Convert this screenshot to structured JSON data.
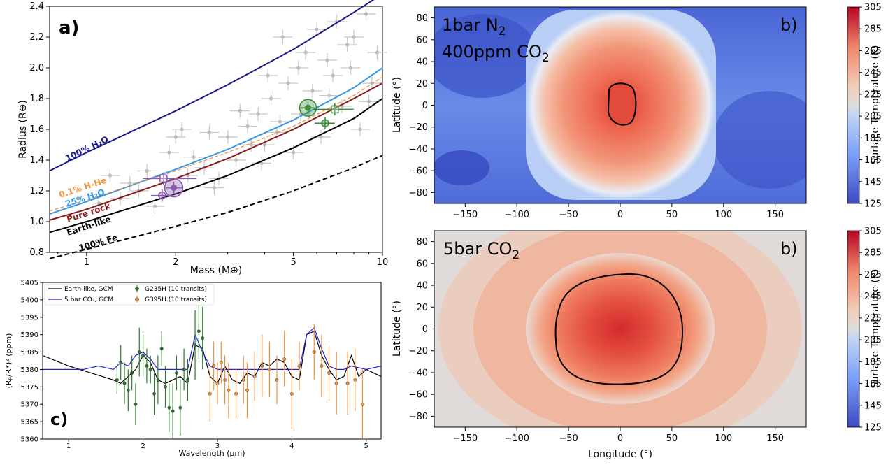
{
  "colors": {
    "h2o100": "#1a1a8c",
    "h2o25": "#3399e6",
    "hhe": "#f0913c",
    "rock": "#8b1a1a",
    "earth": "#000000",
    "fe": "#000000",
    "gcm_earth": "#000000",
    "gcm_co2": "#2222dd",
    "g235": "#2d7a2d",
    "g395": "#f0913c",
    "planet_purple": "#8a5bb0",
    "planet_green": "#3a8a3a",
    "bg_points": "#c8c8c8"
  },
  "chart_data": [
    {
      "type": "scatter",
      "panel_label": "a)",
      "xlabel": "Mass (M⊕)",
      "ylabel": "Radius (R⊕)",
      "xscale": "log",
      "xlim": [
        0.75,
        10
      ],
      "ylim": [
        0.8,
        2.4
      ],
      "xticks": [
        {
          "v": 1,
          "t": "1"
        },
        {
          "v": 2,
          "t": "2"
        },
        {
          "v": 5,
          "t": "5"
        },
        {
          "v": 10,
          "t": "10"
        }
      ],
      "yticks": [
        0.8,
        1.0,
        1.2,
        1.4,
        1.6,
        1.8,
        2.0,
        2.2,
        2.4
      ],
      "curves": [
        {
          "name": "100% H₂O",
          "color": "h2o100",
          "dash": false,
          "x": [
            0.75,
            1,
            2,
            3,
            5,
            8,
            10
          ],
          "y": [
            1.33,
            1.45,
            1.72,
            1.89,
            2.12,
            2.36,
            2.48
          ]
        },
        {
          "name": "25% H₂O",
          "color": "h2o25",
          "dash": false,
          "x": [
            0.75,
            1,
            2,
            3,
            5,
            8,
            10
          ],
          "y": [
            1.05,
            1.13,
            1.34,
            1.47,
            1.66,
            1.87,
            2.0
          ]
        },
        {
          "name": "0.1% H-He",
          "color": "hhe",
          "dash": true,
          "x": [
            0.75,
            1,
            2,
            3,
            5,
            8,
            10
          ],
          "y": [
            1.07,
            1.14,
            1.33,
            1.45,
            1.62,
            1.82,
            1.94
          ]
        },
        {
          "name": "Pure rock",
          "color": "rock",
          "dash": false,
          "x": [
            0.75,
            1,
            2,
            3,
            5,
            8,
            10
          ],
          "y": [
            1.01,
            1.08,
            1.28,
            1.41,
            1.6,
            1.8,
            1.9
          ]
        },
        {
          "name": "Earth-like",
          "color": "earth",
          "dash": false,
          "x": [
            0.75,
            1,
            2,
            3,
            5,
            8,
            10
          ],
          "y": [
            0.93,
            1.0,
            1.18,
            1.3,
            1.48,
            1.67,
            1.8
          ]
        },
        {
          "name": "100% Fe",
          "color": "fe",
          "dash": true,
          "x": [
            0.75,
            1,
            2,
            3,
            5,
            8,
            10
          ],
          "y": [
            0.76,
            0.82,
            0.97,
            1.06,
            1.2,
            1.35,
            1.43
          ]
        }
      ],
      "highlight_points": [
        {
          "x": 1.82,
          "y": 1.28,
          "color": "planet_purple",
          "shape": "square",
          "size": 5,
          "xerr": [
            1.55,
            2.35
          ],
          "yerr": [
            1.24,
            1.32
          ]
        },
        {
          "x": 1.8,
          "y": 1.17,
          "color": "planet_purple",
          "shape": "circle",
          "size": 5,
          "xerr": [
            1.65,
            1.95
          ],
          "yerr": [
            1.13,
            1.21
          ]
        },
        {
          "x": 1.97,
          "y": 1.22,
          "color": "planet_purple",
          "shape": "circle",
          "size": 13,
          "xerr": [
            1.85,
            2.1
          ],
          "yerr": [
            1.18,
            1.26
          ]
        },
        {
          "x": 5.6,
          "y": 1.74,
          "color": "planet_green",
          "shape": "circle",
          "size": 12,
          "xerr": [
            5.3,
            5.9
          ],
          "yerr": [
            1.7,
            1.78
          ]
        },
        {
          "x": 6.9,
          "y": 1.73,
          "color": "planet_green",
          "shape": "square",
          "size": 5,
          "xerr": [
            5.8,
            8.0
          ],
          "yerr": [
            1.69,
            1.77
          ]
        },
        {
          "x": 6.4,
          "y": 1.64,
          "color": "planet_green",
          "shape": "circle",
          "size": 5,
          "xerr": [
            5.9,
            6.9
          ],
          "yerr": [
            1.6,
            1.68
          ]
        }
      ],
      "background_points": [
        [
          1.1,
          1.12
        ],
        [
          1.3,
          1.15
        ],
        [
          1.5,
          1.2
        ],
        [
          1.6,
          1.33
        ],
        [
          1.7,
          1.1
        ],
        [
          2.2,
          1.3
        ],
        [
          2.5,
          1.35
        ],
        [
          2.8,
          1.28
        ],
        [
          3.0,
          1.55
        ],
        [
          3.2,
          1.4
        ],
        [
          3.5,
          1.62
        ],
        [
          3.8,
          1.7
        ],
        [
          4.0,
          1.5
        ],
        [
          4.2,
          1.8
        ],
        [
          4.5,
          1.65
        ],
        [
          4.8,
          1.9
        ],
        [
          5.0,
          1.45
        ],
        [
          5.2,
          2.0
        ],
        [
          5.5,
          2.1
        ],
        [
          5.8,
          1.85
        ],
        [
          6.0,
          2.25
        ],
        [
          6.2,
          1.55
        ],
        [
          6.5,
          2.05
        ],
        [
          6.8,
          1.95
        ],
        [
          7.0,
          2.3
        ],
        [
          7.3,
          1.75
        ],
        [
          7.6,
          2.15
        ],
        [
          8.0,
          2.2
        ],
        [
          8.4,
          1.6
        ],
        [
          8.8,
          2.35
        ],
        [
          9.2,
          1.9
        ],
        [
          9.6,
          2.1
        ],
        [
          2.0,
          1.55
        ],
        [
          2.3,
          1.42
        ],
        [
          2.6,
          1.58
        ],
        [
          3.3,
          1.72
        ],
        [
          3.6,
          1.5
        ],
        [
          4.1,
          1.95
        ],
        [
          4.6,
          2.2
        ],
        [
          5.3,
          1.7
        ],
        [
          1.4,
          1.25
        ],
        [
          1.9,
          1.45
        ],
        [
          2.7,
          1.22
        ],
        [
          3.9,
          1.38
        ],
        [
          7.8,
          2.0
        ],
        [
          9.0,
          1.78
        ],
        [
          6.6,
          1.82
        ],
        [
          4.4,
          1.58
        ],
        [
          2.1,
          1.6
        ],
        [
          1.2,
          1.3
        ]
      ]
    },
    {
      "type": "line",
      "panel_label": "c)",
      "xlabel": "Wavelength (μm)",
      "ylabel": "(Rₚ/R*)² (ppm)",
      "xlim": [
        0.65,
        5.2
      ],
      "ylim": [
        5360,
        5405
      ],
      "xticks": [
        1,
        2,
        3,
        4,
        5
      ],
      "yticks": [
        5360,
        5365,
        5370,
        5375,
        5380,
        5385,
        5390,
        5395,
        5400,
        5405
      ],
      "legend": [
        "Earth-like, GCM",
        "5 bar CO₂, GCM",
        "G235H (10 transits)",
        "G395H (10 transits)"
      ],
      "series": [
        {
          "name": "Earth-like, GCM",
          "color": "gcm_earth",
          "x": [
            0.65,
            1.0,
            1.3,
            1.6,
            1.7,
            1.8,
            1.9,
            2.0,
            2.1,
            2.2,
            2.3,
            2.4,
            2.5,
            2.6,
            2.7,
            2.8,
            2.9,
            3.0,
            3.1,
            3.2,
            3.3,
            3.4,
            3.5,
            3.6,
            3.7,
            3.8,
            3.9,
            4.0,
            4.1,
            4.2,
            4.3,
            4.4,
            4.5,
            4.6,
            4.7,
            4.8,
            4.9,
            5.0,
            5.2
          ],
          "y": [
            5384,
            5381,
            5379,
            5377,
            5376,
            5378,
            5380,
            5384,
            5382,
            5377,
            5376,
            5377,
            5378,
            5376,
            5387,
            5386,
            5378,
            5376,
            5381,
            5377,
            5376,
            5379,
            5378,
            5382,
            5381,
            5383,
            5382,
            5378,
            5377,
            5390,
            5391,
            5384,
            5380,
            5377,
            5378,
            5384,
            5378,
            5380,
            5378
          ]
        },
        {
          "name": "5 bar CO₂, GCM",
          "color": "gcm_co2",
          "x": [
            0.65,
            1.0,
            1.2,
            1.4,
            1.6,
            1.7,
            1.8,
            1.9,
            2.0,
            2.1,
            2.2,
            2.4,
            2.6,
            2.65,
            2.7,
            2.8,
            2.9,
            3.0,
            3.2,
            3.5,
            3.8,
            4.0,
            4.1,
            4.2,
            4.3,
            4.4,
            4.5,
            4.6,
            4.7,
            4.8,
            5.0,
            5.2
          ],
          "y": [
            5380,
            5380,
            5380,
            5381,
            5380,
            5382,
            5381,
            5384,
            5385,
            5383,
            5380,
            5380,
            5380,
            5385,
            5390,
            5385,
            5381,
            5380,
            5380,
            5380,
            5380,
            5380,
            5380,
            5390,
            5392,
            5386,
            5381,
            5380,
            5380,
            5381,
            5380,
            5381
          ]
        },
        {
          "name": "G235H (10 transits)",
          "color": "g235",
          "points": [
            [
              1.65,
              5377,
              4
            ],
            [
              1.7,
              5382,
              5
            ],
            [
              1.75,
              5376,
              6
            ],
            [
              1.8,
              5374,
              6
            ],
            [
              1.85,
              5379,
              5
            ],
            [
              1.9,
              5370,
              6
            ],
            [
              1.95,
              5385,
              7
            ],
            [
              2.0,
              5384,
              6
            ],
            [
              2.05,
              5381,
              5
            ],
            [
              2.1,
              5380,
              4
            ],
            [
              2.15,
              5373,
              6
            ],
            [
              2.2,
              5377,
              7
            ],
            [
              2.25,
              5386,
              5
            ],
            [
              2.3,
              5375,
              6
            ],
            [
              2.35,
              5369,
              7
            ],
            [
              2.4,
              5368,
              8
            ],
            [
              2.45,
              5379,
              5
            ],
            [
              2.5,
              5369,
              8
            ],
            [
              2.55,
              5380,
              6
            ],
            [
              2.6,
              5377,
              6
            ],
            [
              2.7,
              5387,
              10
            ],
            [
              2.75,
              5391,
              8
            ],
            [
              2.8,
              5389,
              9
            ]
          ]
        },
        {
          "name": "G395H (10 transits)",
          "color": "g395",
          "points": [
            [
              2.9,
              5373,
              8
            ],
            [
              2.95,
              5381,
              7
            ],
            [
              3.0,
              5376,
              6
            ],
            [
              3.05,
              5382,
              6
            ],
            [
              3.1,
              5377,
              7
            ],
            [
              3.15,
              5374,
              8
            ],
            [
              3.25,
              5373,
              7
            ],
            [
              3.35,
              5377,
              7
            ],
            [
              3.4,
              5374,
              8
            ],
            [
              3.5,
              5378,
              7
            ],
            [
              3.6,
              5381,
              9
            ],
            [
              3.7,
              5380,
              8
            ],
            [
              3.8,
              5377,
              7
            ],
            [
              3.9,
              5383,
              8
            ],
            [
              4.0,
              5373,
              10
            ],
            [
              4.1,
              5381,
              7
            ],
            [
              4.3,
              5385,
              8
            ],
            [
              4.4,
              5381,
              9
            ],
            [
              4.5,
              5379,
              8
            ],
            [
              4.6,
              5376,
              9
            ],
            [
              4.75,
              5376,
              9
            ],
            [
              4.85,
              5377,
              9
            ],
            [
              4.95,
              5370,
              10
            ]
          ]
        }
      ]
    },
    {
      "type": "heatmap",
      "panel_label": "b)",
      "title_line1": "1bar N",
      "title_line1_sub": "2",
      "title_line2": "400ppm CO",
      "title_line2_sub": "2",
      "xlabel": "",
      "ylabel": "Latitude (°)",
      "xlim": [
        -180,
        180
      ],
      "ylim": [
        -90,
        90
      ],
      "xticks": [
        -150,
        -100,
        -50,
        0,
        50,
        100,
        150
      ],
      "yticks": [
        -80,
        -60,
        -40,
        -20,
        0,
        20,
        40,
        60,
        80
      ],
      "colorbar_label": "Surface Temperature (K)",
      "colorbar_ticks": [
        125,
        145,
        165,
        185,
        205,
        225,
        245,
        265,
        285,
        305
      ],
      "substellar_max_K": 300,
      "nightside_K": 150
    },
    {
      "type": "heatmap",
      "panel_label": "b)",
      "title_line1": "5bar CO",
      "title_line1_sub": "2",
      "xlabel": "Longitude (°)",
      "ylabel": "Latitude (°)",
      "xlim": [
        -180,
        180
      ],
      "ylim": [
        -90,
        90
      ],
      "xticks": [
        -150,
        -100,
        -50,
        0,
        50,
        100,
        150
      ],
      "yticks": [
        -80,
        -60,
        -40,
        -20,
        0,
        20,
        40,
        60,
        80
      ],
      "colorbar_label": "Surface Temperature (K)",
      "colorbar_ticks": [
        125,
        145,
        165,
        185,
        205,
        225,
        245,
        265,
        285,
        305
      ],
      "substellar_max_K": 290,
      "nightside_K": 215
    }
  ]
}
